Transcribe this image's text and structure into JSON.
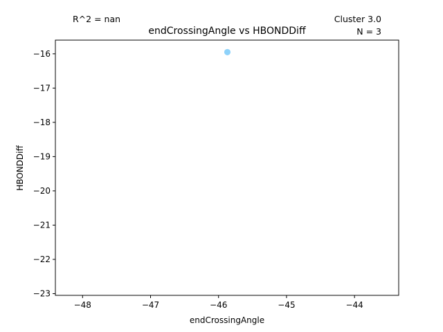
{
  "chart_data": {
    "type": "scatter",
    "title": "endCrossingAngle vs HBONDDiff",
    "xlabel": "endCrossingAngle",
    "ylabel": "HBONDDiff",
    "annotations": {
      "r_squared": "R^2 = nan",
      "cluster": "Cluster 3.0",
      "n": "N = 3"
    },
    "xlim": [
      -48.4,
      -43.35
    ],
    "ylim": [
      -23.05,
      -15.6
    ],
    "xticks": [
      -48,
      -47,
      -46,
      -45,
      -44
    ],
    "yticks": [
      -16,
      -17,
      -18,
      -19,
      -20,
      -21,
      -22,
      -23
    ],
    "xtick_labels": [
      "−48",
      "−47",
      "−46",
      "−45",
      "−44"
    ],
    "ytick_labels": [
      "−16",
      "−17",
      "−18",
      "−19",
      "−20",
      "−21",
      "−22",
      "−23"
    ],
    "series": [
      {
        "points": [
          {
            "x": -45.87,
            "y": -15.95
          },
          {
            "x": -45.87,
            "y": -15.95
          },
          {
            "x": -45.87,
            "y": -15.95
          }
        ]
      }
    ],
    "marker_color": "#87cefa",
    "grid": false
  }
}
